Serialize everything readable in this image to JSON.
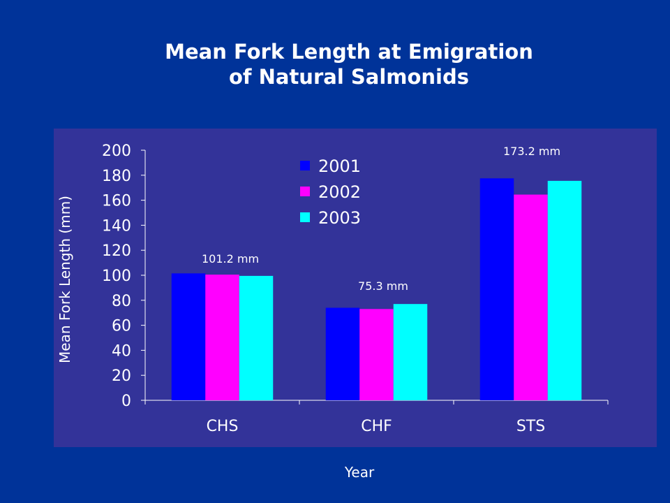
{
  "title_lines": [
    "Mean Fork Length at Emigration",
    "of Natural Salmonids"
  ],
  "colors": {
    "background": "#003399",
    "plot_panel": "#333399",
    "series": [
      "#0000ff",
      "#ff00ff",
      "#00ffff"
    ],
    "text": "#ffffff"
  },
  "chart_data": {
    "type": "bar",
    "title": "Mean Fork Length at Emigration of Natural Salmonids",
    "xlabel": "Year",
    "ylabel": "Mean Fork Length (mm)",
    "categories": [
      "CHS",
      "CHF",
      "STS"
    ],
    "series": [
      {
        "name": "2001",
        "values": [
          101.5,
          74,
          177.5
        ]
      },
      {
        "name": "2002",
        "values": [
          100.5,
          73,
          164.5
        ]
      },
      {
        "name": "2003",
        "values": [
          99.5,
          77,
          175.5
        ]
      }
    ],
    "ylim": [
      0,
      200
    ],
    "yticks": [
      0,
      20,
      40,
      60,
      80,
      100,
      120,
      140,
      160,
      180,
      200
    ],
    "annotations": [
      "101.2 mm",
      "75.3 mm",
      "173.2 mm"
    ],
    "grid": false,
    "legend_position": "top-center"
  }
}
